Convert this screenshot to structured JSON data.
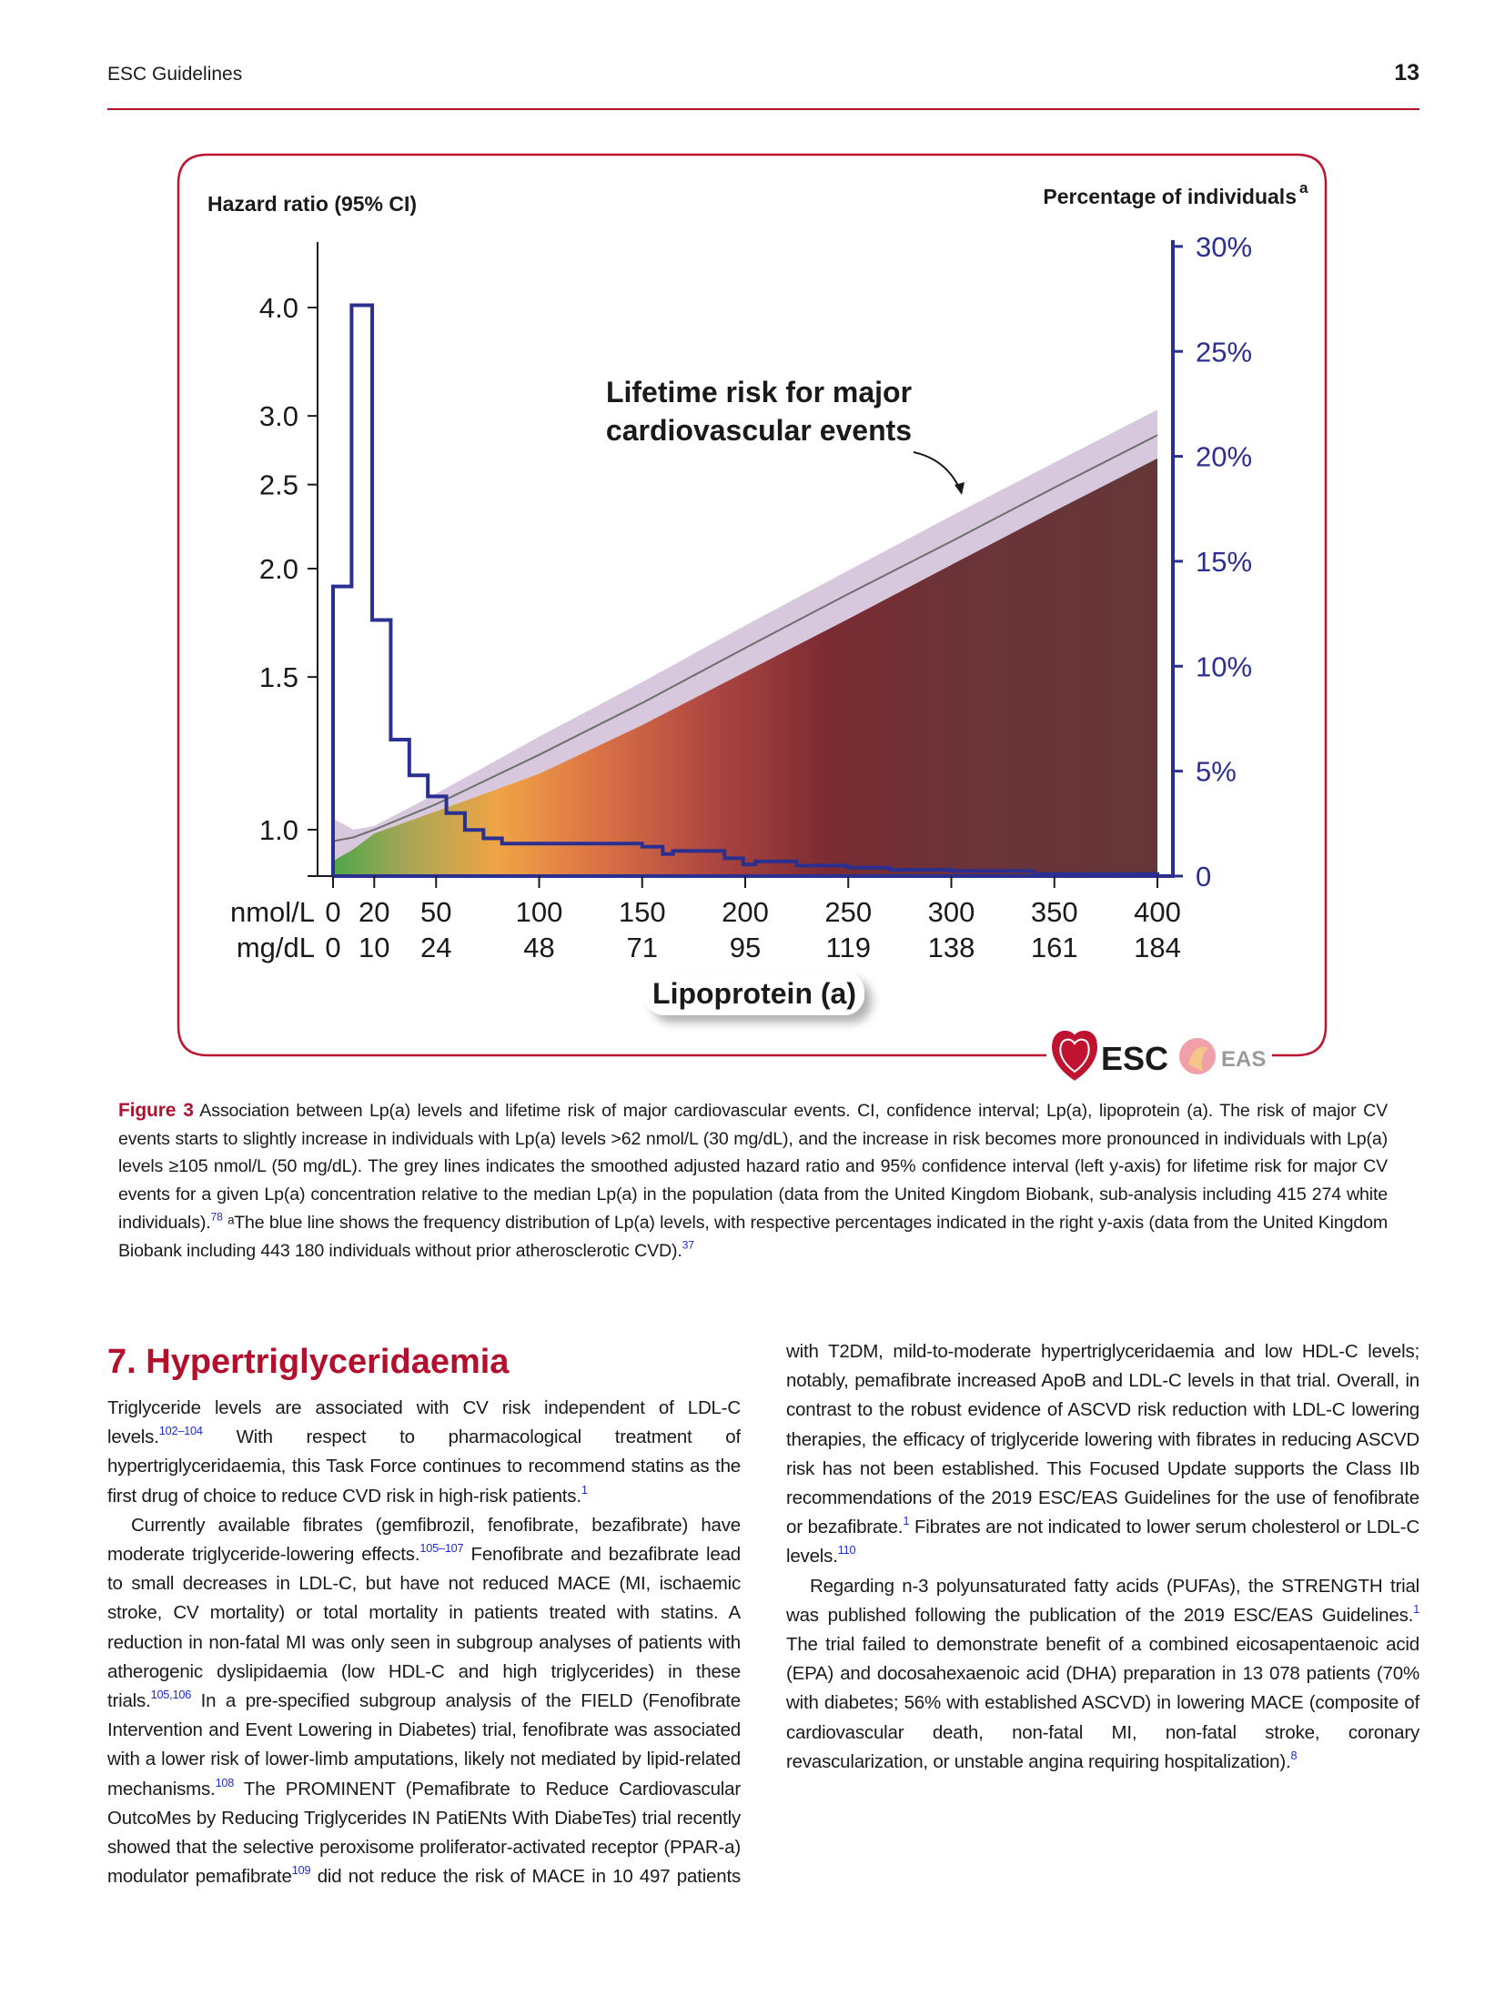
{
  "header": {
    "running_title": "ESC Guidelines",
    "page_number": "13"
  },
  "figure": {
    "left_axis_title": "Hazard ratio (95% CI)",
    "right_axis_title": "Percentage of individuals",
    "right_axis_title_sup": "a",
    "annotation_line1": "Lifetime risk for major",
    "annotation_line2": "cardiovascular events",
    "x_unit_nmol": "nmol/L",
    "x_unit_mgdl": "mg/dL",
    "x_title": "Lipoprotein (a)",
    "logo_esc": "ESC",
    "logo_eas": "EAS",
    "colors": {
      "frame": "#c0132f",
      "histogram": "#2b2f8f",
      "ci_band": "#d8c8de",
      "hr_line": "#6e6e6e"
    }
  },
  "chart_data": {
    "type": "line",
    "title": "Lifetime risk for major cardiovascular events",
    "xlabel": "Lipoprotein (a)",
    "ylabel": "Hazard ratio (95% CI)",
    "y2label": "Percentage of individuals",
    "xlim": [
      0,
      400
    ],
    "ylim": [
      0.88,
      4.3
    ],
    "yscale": "log",
    "y2lim": [
      0,
      30
    ],
    "x_ticks_nmol": [
      "0",
      "20",
      "50",
      "100",
      "150",
      "200",
      "250",
      "300",
      "350",
      "400"
    ],
    "x_tick_values": [
      0,
      20,
      50,
      100,
      150,
      200,
      250,
      300,
      350,
      400
    ],
    "x_ticks_mgdl": [
      "0",
      "10",
      "24",
      "48",
      "71",
      "95",
      "119",
      "138",
      "161",
      "184"
    ],
    "y_ticks": [
      "4.0",
      "3.0",
      "2.5",
      "2.0",
      "1.5",
      "1.0"
    ],
    "y_tick_values": [
      4.0,
      3.0,
      2.5,
      2.0,
      1.5,
      1.0
    ],
    "y2_ticks": [
      "30%",
      "25%",
      "20%",
      "15%",
      "10%",
      "5%",
      "0"
    ],
    "y2_tick_values": [
      30,
      25,
      20,
      15,
      10,
      5,
      0
    ],
    "hazard_ratio": {
      "x": [
        0,
        10,
        20,
        50,
        100,
        150,
        200,
        250,
        300,
        350,
        400
      ],
      "hr": [
        0.97,
        0.98,
        1.0,
        1.07,
        1.22,
        1.4,
        1.62,
        1.87,
        2.15,
        2.48,
        2.85
      ],
      "ci_upper": [
        1.03,
        1.0,
        1.01,
        1.1,
        1.28,
        1.48,
        1.72,
        1.99,
        2.3,
        2.65,
        3.05
      ],
      "ci_lower": [
        0.92,
        0.95,
        0.99,
        1.05,
        1.16,
        1.32,
        1.52,
        1.75,
        2.02,
        2.33,
        2.68
      ]
    },
    "histogram": {
      "name": "Frequency distribution of Lp(a) levels (%)",
      "bin_edges": [
        0,
        9,
        19,
        28,
        37,
        46,
        55,
        64,
        73,
        82,
        150,
        160,
        165,
        190,
        199,
        205,
        225,
        250,
        270,
        300,
        340,
        400
      ],
      "values": [
        13.8,
        27.2,
        12.2,
        6.5,
        4.8,
        3.8,
        3.0,
        2.2,
        1.8,
        1.55,
        1.4,
        1.05,
        1.2,
        0.85,
        0.55,
        0.7,
        0.5,
        0.4,
        0.3,
        0.25,
        0.1
      ]
    }
  },
  "caption": [
    {
      "t": "Figure 3",
      "cls": "fig-label"
    },
    {
      "t": " Association between Lp(a) levels and lifetime risk of major cardiovascular events. CI, confidence interval; Lp(a), lipoprotein (a). The risk of major CV events starts to slightly increase in individuals with Lp(a) levels >62 nmol/L (30 mg/dL), and the increase in risk becomes more pronounced in individuals with Lp(a) levels ≥105 nmol/L (50 mg/dL). The grey lines indicates the smoothed adjusted hazard ratio and 95% confidence interval (left y-axis) for lifetime risk for major CV events for a given Lp(a) concentration relative to the median Lp(a) in the population (data from the United Kingdom Biobank, sub-analysis including 415 274 white individuals)."
    },
    {
      "t": "78",
      "sup": true
    },
    {
      "t": " ᵃThe blue line shows the frequency distribution of Lp(a) levels, with respective percentages indicated in the right y-axis (data from the United Kingdom Biobank including 443 180 individuals without prior atherosclerotic CVD)."
    },
    {
      "t": "37",
      "sup": true
    }
  ],
  "section": {
    "heading": "7. Hypertriglyceridaemia",
    "paragraphs": [
      {
        "indent": false,
        "segments": [
          {
            "t": "Triglyceride levels are associated with CV risk independent of LDL-C levels."
          },
          {
            "t": "102–104",
            "sup": true
          },
          {
            "t": " With respect to pharmacological treatment of hypertriglyceridaemia, this Task Force continues to recommend statins as the first drug of choice to reduce CVD risk in high-risk patients."
          },
          {
            "t": "1",
            "sup": true
          }
        ]
      },
      {
        "indent": true,
        "segments": [
          {
            "t": "Currently available fibrates (gemfibrozil, fenofibrate, bezafibrate) have moderate triglyceride-lowering effects."
          },
          {
            "t": "105–107",
            "sup": true
          },
          {
            "t": " Fenofibrate and bezafibrate lead to small decreases in LDL-C, but have not reduced MACE (MI, ischaemic stroke, CV mortality) or total mortality in patients treated with statins. A reduction in non-fatal MI was only seen in subgroup analyses of patients with atherogenic dyslipidaemia (low HDL-C and high triglycerides) in these trials."
          },
          {
            "t": "105,106",
            "sup": true
          },
          {
            "t": " In a pre-specified subgroup analysis of the FIELD (Fenofibrate Intervention and Event Lowering in Diabetes) trial, fenofibrate was associated with a lower risk of lower-limb amputations, likely not mediated by lipid-related mechanisms."
          },
          {
            "t": "108",
            "sup": true
          },
          {
            "t": " The PROMINENT (Pemafibrate to Reduce Cardiovascular OutcoMes by Reducing Triglycerides IN PatiENts With DiabeTes) trial recently showed that the selective peroxisome proliferator-activated receptor (PPAR-a) modulator pemafibrate"
          },
          {
            "t": "109",
            "sup": true
          },
          {
            "t": " did not reduce the risk of MACE in 10 497 patients with T2DM, mild-to-moderate hypertriglyceridaemia and low HDL-C levels; notably, pemafibrate increased ApoB and LDL-C levels in that trial. Overall, in contrast to the robust evidence of ASCVD risk reduction with LDL-C lowering therapies, the efficacy of triglyceride lowering with fibrates in reducing ASCVD risk has not been established. This Focused Update supports the Class IIb recommendations of the 2019 ESC/EAS Guidelines for the use of fenofibrate or bezafibrate."
          },
          {
            "t": "1",
            "sup": true
          },
          {
            "t": " Fibrates are not indicated to lower serum cholesterol or LDL-C levels."
          },
          {
            "t": "110",
            "sup": true
          }
        ]
      },
      {
        "indent": true,
        "segments": [
          {
            "t": "Regarding n-3 polyunsaturated fatty acids (PUFAs), the STRENGTH trial was published following the publication of the 2019 ESC/EAS Guidelines."
          },
          {
            "t": "1",
            "sup": true
          },
          {
            "t": " The trial failed to demonstrate benefit of a combined eicosapentaenoic acid (EPA) and docosahexaenoic acid (DHA) preparation in 13 078 patients (70% with diabetes; 56% with established ASCVD) in lowering MACE (composite of cardiovascular death, non-fatal MI, non-fatal stroke, coronary revascularization, or unstable angina requiring hospitalization)."
          },
          {
            "t": "8",
            "sup": true
          }
        ]
      }
    ]
  }
}
